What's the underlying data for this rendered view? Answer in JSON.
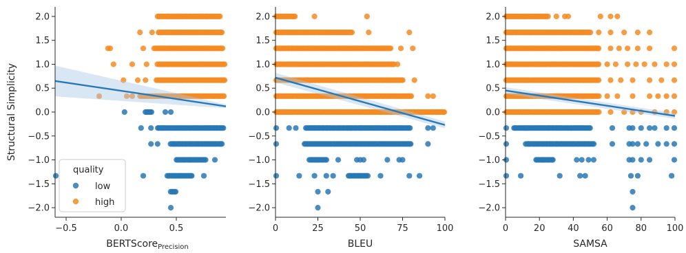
{
  "colors": {
    "low": "#2878b5",
    "high": "#f58b22",
    "reg_line": "#2878b5",
    "band": "#aac8e6"
  },
  "legend": {
    "title": "quality",
    "items": [
      {
        "label": "low",
        "color_key": "low"
      },
      {
        "label": "high",
        "color_key": "high"
      }
    ]
  },
  "chart_data": [
    {
      "type": "scatter",
      "ylabel": "Structural Simplicity",
      "xlabel_main": "BERTScore",
      "xlabel_sub": "Precision",
      "xlim": [
        -0.6,
        0.95
      ],
      "ylim": [
        -2.2,
        2.2
      ],
      "xticks": [
        {
          "v": -0.5,
          "label": "−0.5"
        },
        {
          "v": 0.0,
          "label": "0.0"
        },
        {
          "v": 0.5,
          "label": "0.5"
        }
      ],
      "yticks": [
        {
          "v": -2.0,
          "label": "−2.0"
        },
        {
          "v": -1.5,
          "label": "−1.5"
        },
        {
          "v": -1.0,
          "label": "−1.0"
        },
        {
          "v": -0.5,
          "label": "−0.5"
        },
        {
          "v": 0.0,
          "label": "0.0"
        },
        {
          "v": 0.5,
          "label": "0.5"
        },
        {
          "v": 1.0,
          "label": "1.0"
        },
        {
          "v": 1.5,
          "label": "1.5"
        },
        {
          "v": 2.0,
          "label": "2.0"
        }
      ],
      "regression": {
        "x": [
          -0.6,
          0.95
        ],
        "y": [
          0.65,
          0.12
        ],
        "band_upper": [
          0.97,
          0.16
        ],
        "band_lower": [
          0.33,
          0.08
        ]
      },
      "bands": [
        {
          "y": 2.0,
          "quality": "high",
          "ranges": [
            [
              0.33,
              0.9
            ]
          ],
          "extras": []
        },
        {
          "y": 1.667,
          "quality": "high",
          "ranges": [
            [
              0.34,
              0.92
            ]
          ],
          "extras": [
            0.17,
            0.28
          ]
        },
        {
          "y": 1.333,
          "quality": "high",
          "ranges": [
            [
              0.3,
              0.93
            ]
          ],
          "extras": [
            -0.1,
            -0.12,
            0.2
          ]
        },
        {
          "y": 1.0,
          "quality": "high",
          "ranges": [
            [
              0.33,
              0.94
            ]
          ],
          "extras": [
            -0.07,
            0.1,
            0.23
          ]
        },
        {
          "y": 0.667,
          "quality": "high",
          "ranges": [
            [
              0.32,
              0.94
            ]
          ],
          "extras": [
            0.02,
            0.15,
            0.22
          ]
        },
        {
          "y": 0.333,
          "quality": "high",
          "ranges": [
            [
              0.17,
              0.94
            ]
          ],
          "extras": [
            -0.2,
            0.05,
            0.1
          ]
        },
        {
          "y": 0.0,
          "quality": "low",
          "ranges": [
            [
              0.22,
              0.28
            ]
          ],
          "extras": [
            0.03,
            0.4,
            0.45
          ]
        },
        {
          "y": -0.333,
          "quality": "low",
          "ranges": [
            [
              0.33,
              0.93
            ]
          ],
          "extras": [
            0.18,
            0.27
          ]
        },
        {
          "y": -0.667,
          "quality": "low",
          "ranges": [
            [
              0.45,
              0.92
            ]
          ],
          "extras": [
            0.27,
            0.33
          ]
        },
        {
          "y": -1.0,
          "quality": "low",
          "ranges": [
            [
              0.5,
              0.77
            ]
          ],
          "extras": [
            0.85
          ]
        },
        {
          "y": -1.333,
          "quality": "low",
          "ranges": [
            [
              0.42,
              0.65
            ]
          ],
          "extras": [
            -0.6,
            0.2,
            0.75
          ]
        },
        {
          "y": -1.667,
          "quality": "low",
          "ranges": [
            [
              0.45,
              0.5
            ]
          ],
          "extras": []
        },
        {
          "y": -2.0,
          "quality": "low",
          "ranges": [],
          "extras": [
            0.45
          ]
        }
      ]
    },
    {
      "type": "scatter",
      "ylabel": "",
      "xlabel_main": "BLEU",
      "xlabel_sub": "",
      "xlim": [
        0,
        100
      ],
      "ylim": [
        -2.2,
        2.2
      ],
      "xticks": [
        {
          "v": 0,
          "label": "0"
        },
        {
          "v": 25,
          "label": "25"
        },
        {
          "v": 50,
          "label": "50"
        },
        {
          "v": 75,
          "label": "75"
        },
        {
          "v": 100,
          "label": "100"
        }
      ],
      "yticks": [
        {
          "v": -2.0,
          "label": "−2.0"
        },
        {
          "v": -1.5,
          "label": "−1.5"
        },
        {
          "v": -1.0,
          "label": "−1.0"
        },
        {
          "v": -0.5,
          "label": "−0.5"
        },
        {
          "v": 0.0,
          "label": "0.0"
        },
        {
          "v": 0.5,
          "label": "0.5"
        },
        {
          "v": 1.0,
          "label": "1.0"
        },
        {
          "v": 1.5,
          "label": "1.5"
        },
        {
          "v": 2.0,
          "label": "2.0"
        }
      ],
      "regression": {
        "x": [
          0,
          100
        ],
        "y": [
          0.72,
          -0.27
        ],
        "band_upper": [
          0.82,
          -0.2
        ],
        "band_lower": [
          0.62,
          -0.34
        ]
      },
      "bands": [
        {
          "y": 2.0,
          "quality": "high",
          "ranges": [
            [
              0,
              12
            ]
          ],
          "extras": [
            23,
            54
          ]
        },
        {
          "y": 1.667,
          "quality": "high",
          "ranges": [
            [
              0,
              45
            ]
          ],
          "extras": [
            55,
            79
          ]
        },
        {
          "y": 1.333,
          "quality": "high",
          "ranges": [
            [
              0,
              68
            ]
          ],
          "extras": [
            74,
            81
          ]
        },
        {
          "y": 1.0,
          "quality": "high",
          "ranges": [
            [
              0,
              70
            ]
          ],
          "extras": [
            72
          ]
        },
        {
          "y": 0.667,
          "quality": "high",
          "ranges": [
            [
              0,
              75
            ]
          ],
          "extras": [
            82
          ]
        },
        {
          "y": 0.333,
          "quality": "high",
          "ranges": [
            [
              0,
              80
            ]
          ],
          "extras": [
            90,
            93
          ]
        },
        {
          "y": 0.0,
          "quality": "high",
          "ranges": [
            [
              0,
              100
            ]
          ],
          "extras": []
        },
        {
          "y": -0.333,
          "quality": "low",
          "ranges": [
            [
              18,
              80
            ]
          ],
          "extras": [
            0,
            8,
            12,
            90,
            93
          ]
        },
        {
          "y": -0.667,
          "quality": "low",
          "ranges": [
            [
              17,
              80
            ]
          ],
          "extras": [
            0,
            90
          ]
        },
        {
          "y": -1.0,
          "quality": "low",
          "ranges": [
            [
              20,
              30
            ]
          ],
          "extras": [
            37,
            48,
            50,
            52,
            66,
            73,
            75
          ]
        },
        {
          "y": -1.333,
          "quality": "low",
          "ranges": [
            [
              43,
              55
            ]
          ],
          "extras": [
            0,
            14,
            23,
            30,
            34,
            62,
            79,
            85
          ]
        },
        {
          "y": -1.667,
          "quality": "low",
          "ranges": [],
          "extras": [
            25,
            31
          ]
        },
        {
          "y": -2.0,
          "quality": "low",
          "ranges": [],
          "extras": [
            25
          ]
        }
      ]
    },
    {
      "type": "scatter",
      "ylabel": "",
      "xlabel_main": "SAMSA",
      "xlabel_sub": "",
      "xlim": [
        0,
        100
      ],
      "ylim": [
        -2.2,
        2.2
      ],
      "xticks": [
        {
          "v": 0,
          "label": "0"
        },
        {
          "v": 20,
          "label": "20"
        },
        {
          "v": 40,
          "label": "40"
        },
        {
          "v": 60,
          "label": "60"
        },
        {
          "v": 80,
          "label": "80"
        },
        {
          "v": 100,
          "label": "100"
        }
      ],
      "yticks": [
        {
          "v": -2.0,
          "label": "−2.0"
        },
        {
          "v": -1.5,
          "label": "−1.5"
        },
        {
          "v": -1.0,
          "label": "−1.0"
        },
        {
          "v": -0.5,
          "label": "−0.5"
        },
        {
          "v": 0.0,
          "label": "0.0"
        },
        {
          "v": 0.5,
          "label": "0.5"
        },
        {
          "v": 1.0,
          "label": "1.0"
        },
        {
          "v": 1.5,
          "label": "1.5"
        },
        {
          "v": 2.0,
          "label": "2.0"
        }
      ],
      "regression": {
        "x": [
          0,
          100
        ],
        "y": [
          0.45,
          -0.08
        ],
        "band_upper": [
          0.52,
          -0.02
        ],
        "band_lower": [
          0.38,
          -0.14
        ]
      },
      "bands": [
        {
          "y": 2.0,
          "quality": "high",
          "ranges": [
            [
              0,
              25
            ]
          ],
          "extras": [
            30,
            35,
            37,
            56,
            62,
            66
          ]
        },
        {
          "y": 1.667,
          "quality": "high",
          "ranges": [
            [
              0,
              50
            ]
          ],
          "extras": [
            55,
            62,
            70,
            78,
            85
          ]
        },
        {
          "y": 1.333,
          "quality": "high",
          "ranges": [
            [
              0,
              55
            ]
          ],
          "extras": [
            62,
            67,
            72,
            78,
            85,
            100
          ]
        },
        {
          "y": 1.0,
          "quality": "high",
          "ranges": [
            [
              0,
              55
            ]
          ],
          "extras": [
            60,
            65,
            72,
            77,
            82,
            88,
            95,
            100
          ]
        },
        {
          "y": 0.667,
          "quality": "high",
          "ranges": [
            [
              0,
              55
            ]
          ],
          "extras": [
            62,
            68,
            75,
            85,
            92,
            100
          ]
        },
        {
          "y": 0.333,
          "quality": "high",
          "ranges": [
            [
              0,
              55
            ]
          ],
          "extras": [
            60,
            66,
            75,
            85,
            90,
            95,
            100
          ]
        },
        {
          "y": 0.0,
          "quality": "high",
          "ranges": [
            [
              0,
              55
            ]
          ],
          "extras": [
            62,
            70,
            75,
            80,
            88,
            95,
            100
          ]
        },
        {
          "y": -0.333,
          "quality": "low",
          "ranges": [
            [
              5,
              50
            ]
          ],
          "extras": [
            0,
            63,
            73,
            75,
            80,
            85,
            88,
            95,
            100
          ]
        },
        {
          "y": -0.667,
          "quality": "low",
          "ranges": [
            [
              12,
              52
            ]
          ],
          "extras": [
            0,
            63,
            73,
            75,
            78,
            83,
            90,
            95,
            100
          ]
        },
        {
          "y": -1.0,
          "quality": "low",
          "ranges": [
            [
              18,
              28
            ]
          ],
          "extras": [
            0,
            42,
            45,
            49,
            52,
            73,
            75,
            80,
            85,
            100
          ]
        },
        {
          "y": -1.333,
          "quality": "low",
          "ranges": [],
          "extras": [
            0,
            9,
            32,
            44,
            47,
            74,
            78,
            98
          ]
        },
        {
          "y": -1.667,
          "quality": "low",
          "ranges": [],
          "extras": [
            75
          ]
        },
        {
          "y": -2.0,
          "quality": "low",
          "ranges": [],
          "extras": [
            75
          ]
        }
      ]
    }
  ]
}
